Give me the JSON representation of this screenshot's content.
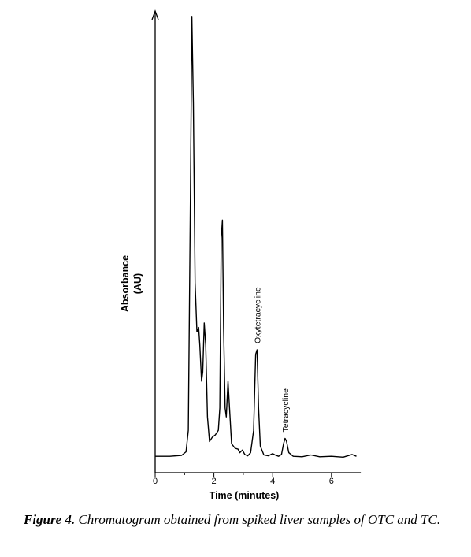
{
  "chart_data": {
    "type": "line",
    "title": "",
    "xlabel": "Time (minutes)",
    "ylabel_line1": "Absorbance",
    "ylabel_line2": "(AU)",
    "xlim": [
      0,
      7
    ],
    "ylim": [
      0,
      1
    ],
    "xticks": [
      0,
      2,
      4,
      6
    ],
    "series": [
      {
        "points": [
          [
            0.0,
            0.012
          ],
          [
            0.5,
            0.012
          ],
          [
            0.9,
            0.014
          ],
          [
            1.05,
            0.022
          ],
          [
            1.13,
            0.07
          ],
          [
            1.2,
            0.6
          ],
          [
            1.25,
            0.995
          ],
          [
            1.3,
            0.8
          ],
          [
            1.36,
            0.4
          ],
          [
            1.42,
            0.29
          ],
          [
            1.48,
            0.3
          ],
          [
            1.52,
            0.26
          ],
          [
            1.58,
            0.18
          ],
          [
            1.62,
            0.2
          ],
          [
            1.67,
            0.31
          ],
          [
            1.72,
            0.26
          ],
          [
            1.78,
            0.1
          ],
          [
            1.85,
            0.045
          ],
          [
            1.95,
            0.055
          ],
          [
            2.05,
            0.06
          ],
          [
            2.15,
            0.07
          ],
          [
            2.2,
            0.12
          ],
          [
            2.25,
            0.5
          ],
          [
            2.29,
            0.54
          ],
          [
            2.33,
            0.3
          ],
          [
            2.38,
            0.12
          ],
          [
            2.42,
            0.1
          ],
          [
            2.48,
            0.18
          ],
          [
            2.53,
            0.12
          ],
          [
            2.6,
            0.04
          ],
          [
            2.72,
            0.03
          ],
          [
            2.82,
            0.028
          ],
          [
            2.88,
            0.02
          ],
          [
            2.97,
            0.026
          ],
          [
            3.05,
            0.016
          ],
          [
            3.15,
            0.013
          ],
          [
            3.25,
            0.02
          ],
          [
            3.35,
            0.07
          ],
          [
            3.42,
            0.24
          ],
          [
            3.47,
            0.25
          ],
          [
            3.52,
            0.12
          ],
          [
            3.58,
            0.035
          ],
          [
            3.7,
            0.015
          ],
          [
            3.85,
            0.013
          ],
          [
            4.0,
            0.018
          ],
          [
            4.08,
            0.015
          ],
          [
            4.2,
            0.012
          ],
          [
            4.3,
            0.016
          ],
          [
            4.37,
            0.04
          ],
          [
            4.42,
            0.052
          ],
          [
            4.47,
            0.046
          ],
          [
            4.55,
            0.02
          ],
          [
            4.7,
            0.012
          ],
          [
            5.0,
            0.011
          ],
          [
            5.3,
            0.015
          ],
          [
            5.6,
            0.011
          ],
          [
            6.0,
            0.012
          ],
          [
            6.4,
            0.01
          ],
          [
            6.7,
            0.016
          ],
          [
            6.85,
            0.012
          ]
        ]
      }
    ],
    "annotations": [
      {
        "text": "Oxytetracycline",
        "x": 3.47,
        "y": 0.25
      },
      {
        "text": "Tetracycline",
        "x": 4.42,
        "y": 0.052
      }
    ]
  },
  "caption": {
    "lead": "Figure 4.",
    "text": " Chromatogram obtained from spiked liver samples of OTC and TC."
  }
}
